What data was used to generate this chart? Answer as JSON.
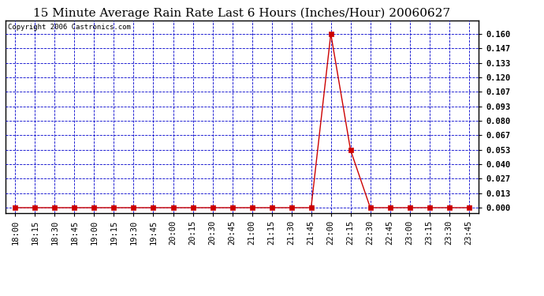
{
  "title": "15 Minute Average Rain Rate Last 6 Hours (Inches/Hour) 20060627",
  "copyright": "Copyright 2006 Castronics.com",
  "x_labels": [
    "18:00",
    "18:15",
    "18:30",
    "18:45",
    "19:00",
    "19:15",
    "19:30",
    "19:45",
    "20:00",
    "20:15",
    "20:30",
    "20:45",
    "21:00",
    "21:15",
    "21:30",
    "21:45",
    "22:00",
    "22:15",
    "22:30",
    "22:45",
    "23:00",
    "23:15",
    "23:30",
    "23:45"
  ],
  "y_values": [
    0.0,
    0.0,
    0.0,
    0.0,
    0.0,
    0.0,
    0.0,
    0.0,
    0.0,
    0.0,
    0.0,
    0.0,
    0.0,
    0.0,
    0.0,
    0.0,
    0.16,
    0.053,
    0.0,
    0.0,
    0.0,
    0.0,
    0.0,
    0.0
  ],
  "yticks": [
    0.0,
    0.013,
    0.027,
    0.04,
    0.053,
    0.067,
    0.08,
    0.093,
    0.107,
    0.12,
    0.133,
    0.147,
    0.16
  ],
  "ylim": [
    -0.005,
    0.172
  ],
  "line_color": "#cc0000",
  "marker_color": "#cc0000",
  "grid_color": "#0000cc",
  "bg_color": "#ffffff",
  "title_fontsize": 11,
  "copyright_fontsize": 6.5,
  "tick_fontsize": 7.5,
  "marker_size": 4
}
